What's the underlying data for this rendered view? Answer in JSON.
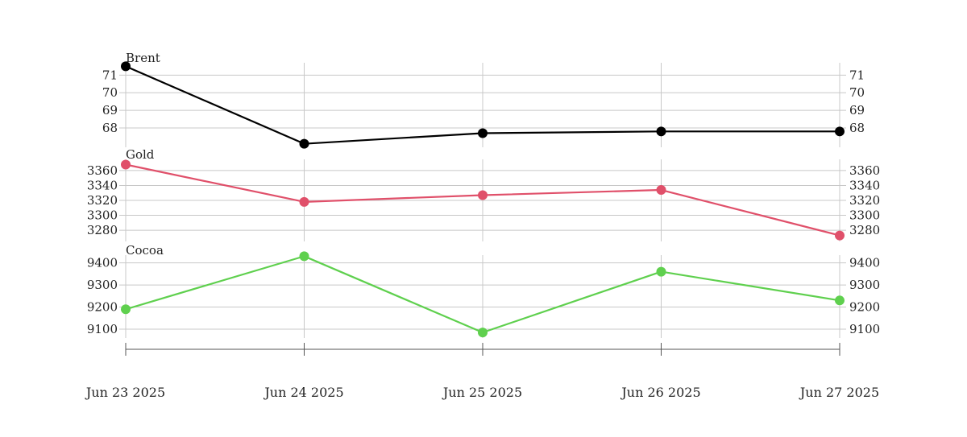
{
  "chart_data": {
    "type": "line",
    "x": [
      "Jun 23 2025",
      "Jun 24 2025",
      "Jun 25 2025",
      "Jun 26 2025",
      "Jun 27 2025"
    ],
    "grid": true,
    "panels": [
      {
        "name": "Brent",
        "color": "#000000",
        "values": [
          71.5,
          67.1,
          67.7,
          67.8,
          67.8
        ],
        "ylim": [
          66.9,
          71.7
        ],
        "yticks": [
          68,
          69,
          70,
          71
        ],
        "ytick_labels": [
          "68",
          "69",
          "70",
          "71"
        ]
      },
      {
        "name": "Gold",
        "color": "#e0506a",
        "values": [
          3368,
          3318,
          3327,
          3334,
          3273
        ],
        "ylim": [
          3265,
          3375
        ],
        "yticks": [
          3280,
          3300,
          3320,
          3340,
          3360
        ],
        "ytick_labels": [
          "3280",
          "3300",
          "3320",
          "3340",
          "3360"
        ]
      },
      {
        "name": "Cocoa",
        "color": "#5fd04e",
        "values": [
          9190,
          9430,
          9085,
          9360,
          9230
        ],
        "ylim": [
          9060,
          9435
        ],
        "yticks": [
          9100,
          9200,
          9300,
          9400
        ],
        "ytick_labels": [
          "9100",
          "9200",
          "9300",
          "9400"
        ]
      }
    ]
  }
}
